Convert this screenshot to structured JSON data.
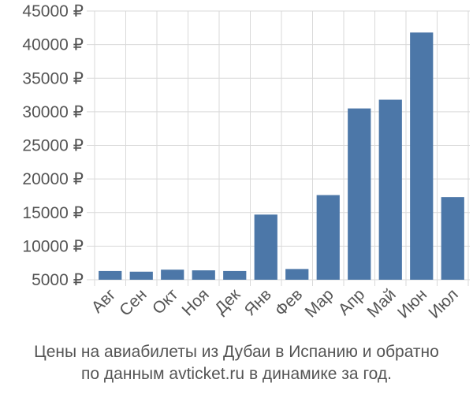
{
  "chart_data": {
    "type": "bar",
    "categories": [
      "Авг",
      "Сен",
      "Окт",
      "Ноя",
      "Дек",
      "Янв",
      "Фев",
      "Мар",
      "Апр",
      "Май",
      "Июн",
      "Июл"
    ],
    "values": [
      6300,
      6200,
      6500,
      6400,
      6300,
      14700,
      6600,
      17600,
      30500,
      31800,
      41800,
      17300
    ],
    "y_ticks": [
      "5000 ₽",
      "10000 ₽",
      "15000 ₽",
      "20000 ₽",
      "25000 ₽",
      "30000 ₽",
      "35000 ₽",
      "40000 ₽",
      "45000 ₽"
    ],
    "y_tick_values": [
      5000,
      10000,
      15000,
      20000,
      25000,
      30000,
      35000,
      40000,
      45000
    ],
    "ylim": [
      5000,
      45000
    ],
    "grid": true,
    "bar_color": "#4c77a8",
    "grid_color": "#d9d9d9",
    "axis_text_color": "#555555",
    "title": "",
    "xlabel": "",
    "ylabel": ""
  },
  "caption": {
    "line1": "Цены на авиабилеты из Дубаи в Испанию и обратно",
    "line2": "по данным avticket.ru в динамике за год."
  }
}
